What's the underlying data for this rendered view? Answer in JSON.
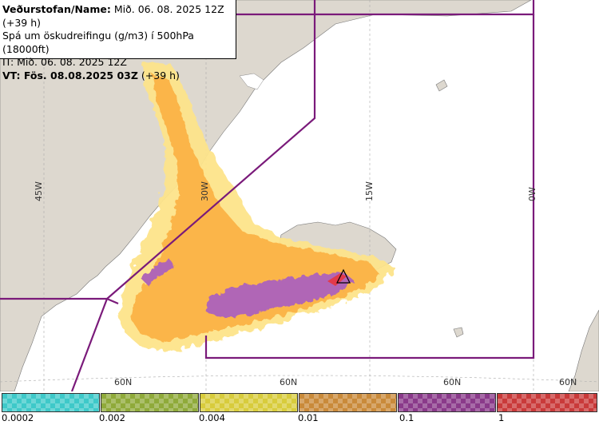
{
  "info": {
    "line1_label": "Veðurstofan/Name:",
    "line1_value": "Mið. 06. 08. 2025 12Z (+39 h)",
    "line2": "Spá um öskudreifingu (g/m3) í 500hPa (18000ft)",
    "line3": "IT: Mið. 06. 08. 2025 12Z",
    "line4_label": "VT: Fös. 08.08.2025 03Z",
    "line4_value": "(+39 h)"
  },
  "meridians": [
    "45W",
    "30W",
    "15W",
    "0W"
  ],
  "parallels": [
    "60N",
    "60N",
    "60N",
    "60N"
  ],
  "legend": {
    "ticks": [
      "0.0002",
      "0.002",
      "0.004",
      "0.01",
      "0.1",
      "1"
    ],
    "colors": [
      "#3ec9c9",
      "#8faa3a",
      "#d8cc3c",
      "#c98a3a",
      "#8a3a8a",
      "#c93a3a"
    ]
  },
  "colors": {
    "ash_light": "#fde48a",
    "ash_orange": "#fbb54a",
    "ash_purple": "#b066b6",
    "ash_red": "#e23a4a",
    "fir_boundary": "#7a1a7a",
    "land": "#ddd8cf"
  }
}
